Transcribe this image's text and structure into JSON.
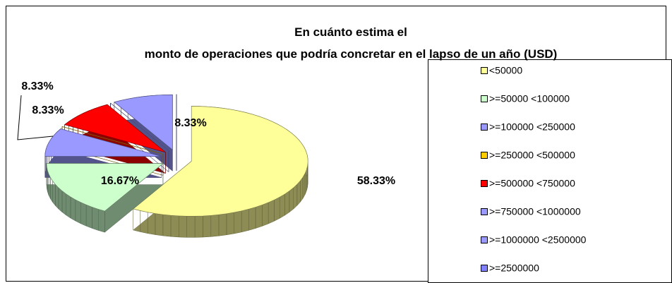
{
  "chart_data": {
    "type": "pie",
    "title": "En cuánto estima el monto de operaciones que podría concretar en el lapso de un año (USD)",
    "categories": [
      "<50000",
      ">=50000 <100000",
      ">=100000 <250000",
      ">=250000 <500000",
      ">=500000 <750000",
      ">=750000 <1000000",
      ">=1000000 <2500000",
      ">=2500000"
    ],
    "values": [
      58.33,
      16.67,
      8.33,
      0,
      8.33,
      0,
      8.33,
      0
    ],
    "value_labels": [
      "58.33%",
      "16.67%",
      "8.33%",
      null,
      "8.33%",
      null,
      "8.33%",
      null
    ],
    "colors": [
      "#ffff99",
      "#ccffcc",
      "#9999ff",
      "#ffcc00",
      "#ff0000",
      "#9999ff",
      "#9999ff",
      "#8080ff"
    ],
    "legend": "right"
  }
}
